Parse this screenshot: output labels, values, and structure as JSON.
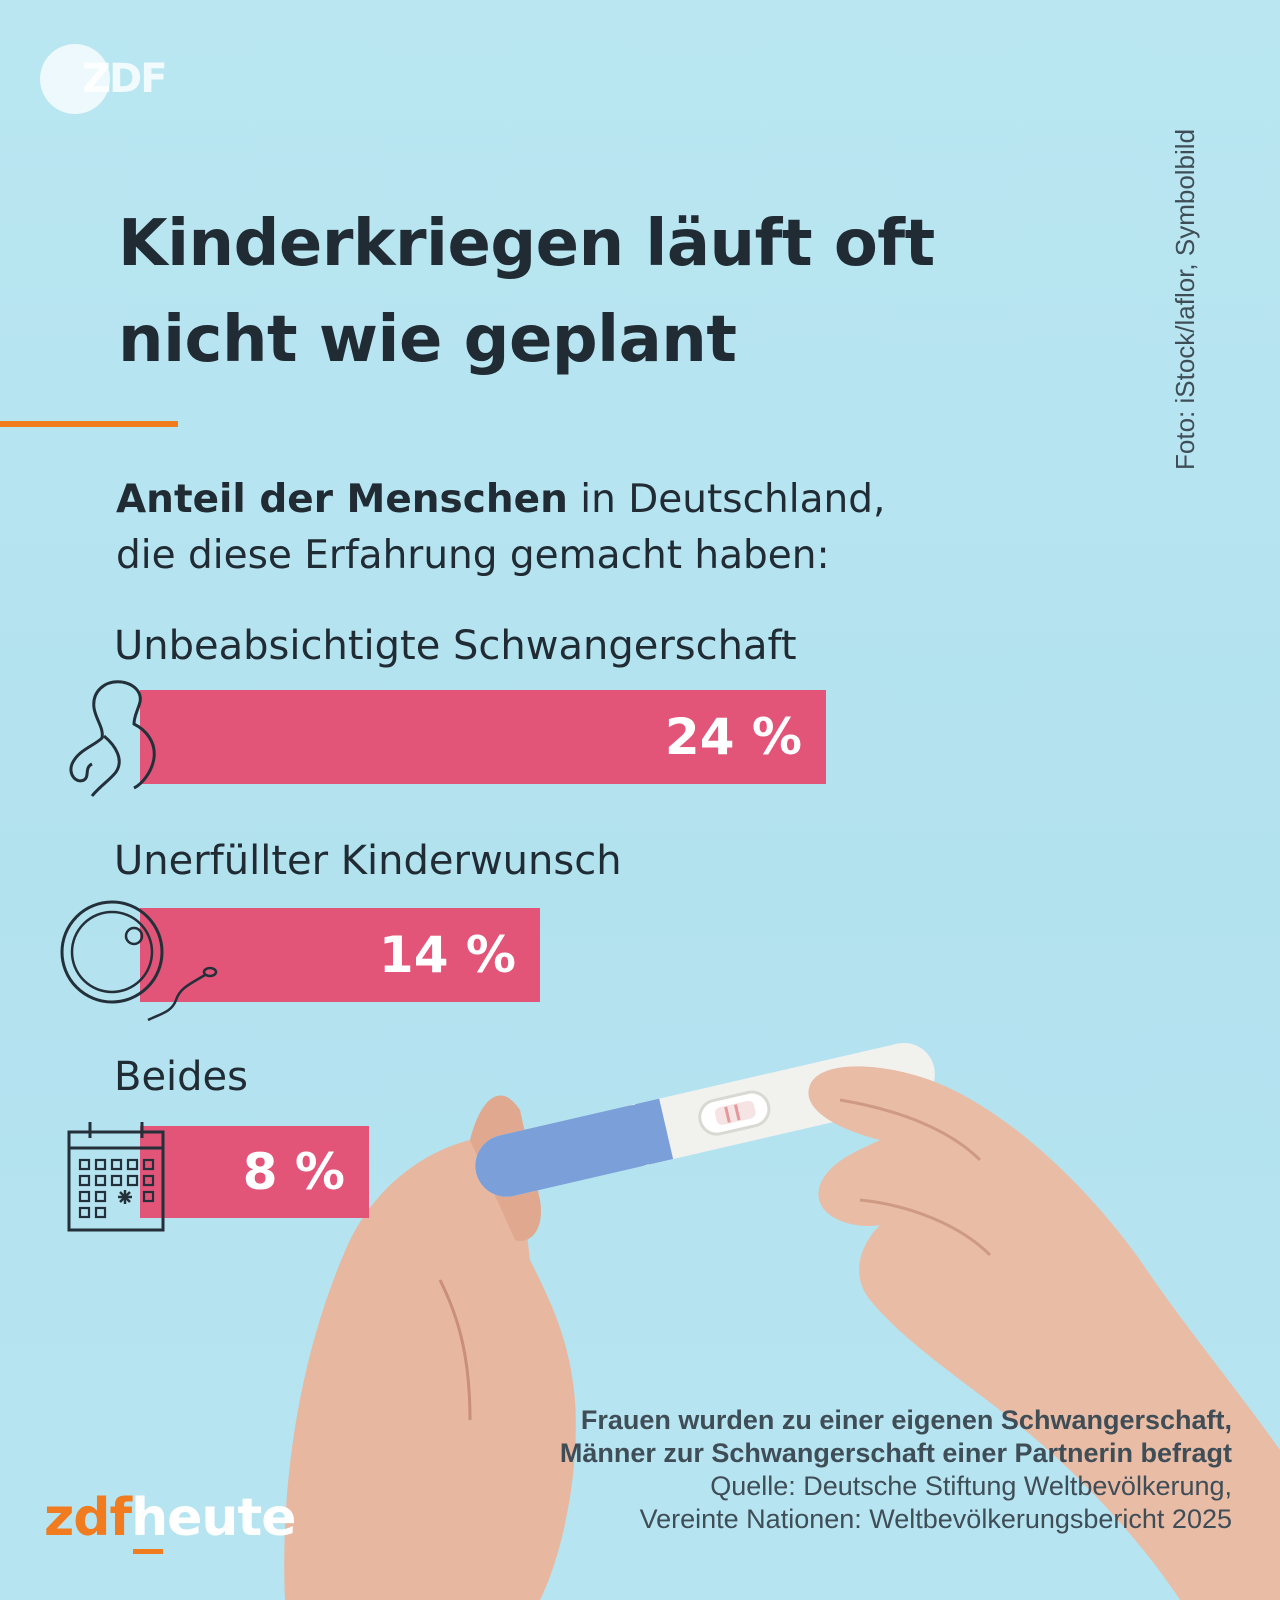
{
  "logo_top": "ZDF",
  "credit": "Foto: iStock/laflor, Symbolbild",
  "title_line1": "Kinderkriegen läuft oft",
  "title_line2": "nicht wie geplant",
  "subtitle_bold": "Anteil der Menschen",
  "subtitle_rest1": " in Deutschland,",
  "subtitle_line2": "die diese Erfahrung gemacht haben:",
  "chart_data": {
    "type": "bar",
    "orientation": "horizontal",
    "categories": [
      "Unbeabsichtigte Schwangerschaft",
      "Unerfüllter Kinderwunsch",
      "Beides"
    ],
    "values": [
      24,
      14,
      8
    ],
    "value_labels": [
      "24 %",
      "14 %",
      "8 %"
    ],
    "unit": "%",
    "title": "Kinderkriegen läuft oft nicht wie geplant",
    "xlim": [
      0,
      24
    ],
    "grid": false,
    "icons": [
      "pregnant-woman-icon",
      "egg-sperm-icon",
      "calendar-icon"
    ],
    "bar_color": "#e25478"
  },
  "footnote_bold_1": "Frauen wurden zu einer eigenen Schwangerschaft,",
  "footnote_bold_2": "Männer zur Schwangerschaft einer Partnerin befragt",
  "footnote_source_1": "Quelle: Deutsche Stiftung Weltbevölkerung,",
  "footnote_source_2": "Vereinte Nationen: Weltbevölkerungsbericht 2025",
  "brand_zdf": "zdf",
  "brand_heute": "heute",
  "colors": {
    "accent": "#f07c1f",
    "bar": "#e25478",
    "background": "#b5e3f0",
    "text": "#202b33"
  }
}
